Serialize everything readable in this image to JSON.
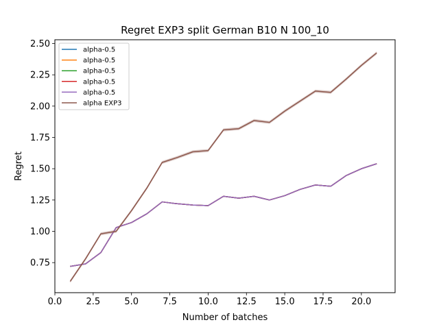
{
  "chart_data": {
    "type": "line",
    "title": "Regret EXP3 split German B10 N 100_10",
    "xlabel": "Number of batches",
    "ylabel": "Regret",
    "xlim": [
      0,
      22.2
    ],
    "ylim": [
      0.51,
      2.53
    ],
    "xticks": [
      0,
      2.5,
      5,
      7.5,
      10,
      12.5,
      15,
      17.5,
      20
    ],
    "xtick_labels": [
      "0.0",
      "2.5",
      "5.0",
      "7.5",
      "10.0",
      "12.5",
      "15.0",
      "17.5",
      "20.0"
    ],
    "yticks": [
      0.75,
      1.0,
      1.25,
      1.5,
      1.75,
      2.0,
      2.25,
      2.5
    ],
    "ytick_labels": [
      "0.75",
      "1.00",
      "1.25",
      "1.50",
      "1.75",
      "2.00",
      "2.25",
      "2.50"
    ],
    "legend_position": "top-left",
    "x": [
      1,
      2,
      3,
      4,
      5,
      6,
      7,
      8,
      9,
      10,
      11,
      12,
      13,
      14,
      15,
      16,
      17,
      18,
      19,
      20,
      21
    ],
    "series": [
      {
        "name": "alpha-0.5",
        "color": "#1f77b4",
        "values": [
          0.72,
          0.74,
          0.83,
          1.03,
          1.07,
          1.14,
          1.235,
          1.22,
          1.21,
          1.205,
          1.28,
          1.265,
          1.28,
          1.25,
          1.285,
          1.335,
          1.37,
          1.36,
          1.445,
          1.5,
          1.54
        ]
      },
      {
        "name": "alpha-0.5",
        "color": "#ff7f0e",
        "values": [
          0.72,
          0.74,
          0.83,
          1.03,
          1.07,
          1.14,
          1.235,
          1.22,
          1.21,
          1.205,
          1.28,
          1.265,
          1.28,
          1.25,
          1.285,
          1.335,
          1.37,
          1.36,
          1.445,
          1.5,
          1.54
        ]
      },
      {
        "name": "alpha-0.5",
        "color": "#2ca02c",
        "values": [
          0.72,
          0.74,
          0.83,
          1.03,
          1.07,
          1.14,
          1.235,
          1.22,
          1.21,
          1.205,
          1.28,
          1.265,
          1.28,
          1.25,
          1.285,
          1.335,
          1.37,
          1.36,
          1.445,
          1.5,
          1.54
        ]
      },
      {
        "name": "alpha-0.5",
        "color": "#d62728",
        "values": [
          0.72,
          0.74,
          0.83,
          1.03,
          1.07,
          1.14,
          1.235,
          1.22,
          1.21,
          1.205,
          1.28,
          1.265,
          1.28,
          1.25,
          1.285,
          1.335,
          1.37,
          1.36,
          1.445,
          1.5,
          1.54
        ]
      },
      {
        "name": "alpha-0.5",
        "color": "#9467bd",
        "values": [
          0.72,
          0.74,
          0.83,
          1.03,
          1.07,
          1.14,
          1.235,
          1.22,
          1.21,
          1.205,
          1.28,
          1.265,
          1.28,
          1.25,
          1.285,
          1.335,
          1.37,
          1.36,
          1.445,
          1.5,
          1.54
        ]
      },
      {
        "name": "alpha EXP3",
        "color": "#8c564b",
        "values": [
          0.6,
          0.78,
          0.98,
          1.0,
          1.165,
          1.345,
          1.55,
          1.59,
          1.635,
          1.645,
          1.81,
          1.82,
          1.885,
          1.87,
          1.96,
          2.04,
          2.12,
          2.11,
          2.215,
          2.325,
          2.425
        ]
      }
    ],
    "band": {
      "series": "alpha EXP3",
      "halfwidth": 0.012
    }
  }
}
